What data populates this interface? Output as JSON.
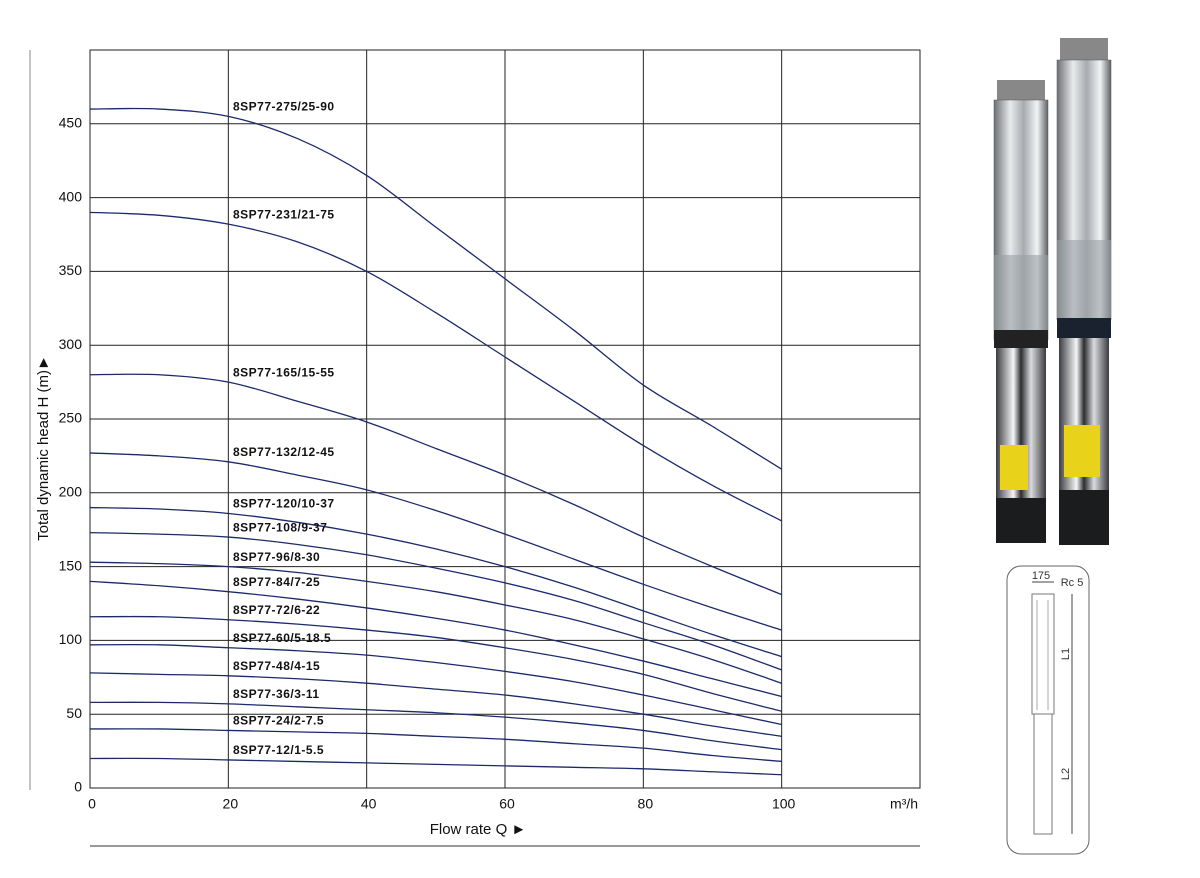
{
  "chart_data": {
    "type": "line",
    "x_label": "Flow rate Q  ►",
    "y_label": "Total dynamic head H (m)►",
    "x_unit": "m³/h",
    "x": [
      0,
      10,
      20,
      30,
      40,
      50,
      60,
      70,
      80,
      90,
      100
    ],
    "xlim": [
      0,
      120
    ],
    "xticks": [
      0,
      20,
      40,
      60,
      80,
      100
    ],
    "ylim": [
      0,
      500
    ],
    "yticks": [
      0,
      50,
      100,
      150,
      200,
      250,
      300,
      350,
      400,
      450
    ],
    "grid": true,
    "series": [
      {
        "name": "8SP77-275/25-90",
        "color": "#1b2a6b",
        "values": [
          460,
          460,
          455,
          440,
          415,
          380,
          345,
          310,
          273,
          245,
          216
        ]
      },
      {
        "name": "8SP77-231/21-75",
        "color": "#1b2a6b",
        "values": [
          390,
          388,
          382,
          370,
          350,
          322,
          292,
          262,
          232,
          205,
          181
        ]
      },
      {
        "name": "8SP77-165/15-55",
        "color": "#1b2a6b",
        "values": [
          280,
          280,
          275,
          262,
          248,
          230,
          212,
          192,
          170,
          150,
          131
        ]
      },
      {
        "name": "8SP77-132/12-45",
        "color": "#1b2a6b",
        "values": [
          227,
          225,
          221,
          212,
          202,
          188,
          172,
          155,
          138,
          122,
          107
        ]
      },
      {
        "name": "8SP77-120/10-37",
        "color": "#1b2a6b",
        "values": [
          190,
          189,
          186,
          180,
          172,
          162,
          150,
          136,
          120,
          104,
          89
        ]
      },
      {
        "name": "8SP77-108/9-37",
        "color": "#1b2a6b",
        "values": [
          173,
          172,
          170,
          165,
          158,
          149,
          139,
          127,
          112,
          97,
          80
        ]
      },
      {
        "name": "8SP77-96/8-30",
        "color": "#1b2a6b",
        "values": [
          153,
          152,
          150,
          146,
          140,
          133,
          124,
          114,
          101,
          87,
          71
        ]
      },
      {
        "name": "8SP77-84/7-25",
        "color": "#1b2a6b",
        "values": [
          140,
          137,
          133,
          128,
          122,
          115,
          107,
          97,
          86,
          74,
          62
        ]
      },
      {
        "name": "8SP77-72/6-22",
        "color": "#1b2a6b",
        "values": [
          116,
          116,
          114,
          111,
          107,
          102,
          95,
          87,
          77,
          64,
          52
        ]
      },
      {
        "name": "8SP77-60/5-18.5",
        "color": "#1b2a6b",
        "values": [
          97,
          97,
          95,
          93,
          90,
          85,
          79,
          72,
          63,
          53,
          43
        ]
      },
      {
        "name": "8SP77-48/4-15",
        "color": "#1b2a6b",
        "values": [
          78,
          77,
          76,
          74,
          71,
          67,
          63,
          57,
          50,
          42,
          35
        ]
      },
      {
        "name": "8SP77-36/3-11",
        "color": "#1b2a6b",
        "values": [
          58,
          58,
          57,
          55,
          53,
          51,
          48,
          44,
          39,
          32,
          26
        ]
      },
      {
        "name": "8SP77-24/2-7.5",
        "color": "#1b2a6b",
        "values": [
          40,
          40,
          39,
          38,
          37,
          35,
          33,
          30,
          27,
          22,
          18
        ]
      },
      {
        "name": "8SP77-12/1-5.5",
        "color": "#1b2a6b",
        "values": [
          20,
          20,
          19,
          18,
          17,
          16,
          15,
          14,
          13,
          11,
          9
        ]
      }
    ]
  },
  "product_drawing": {
    "width": "175",
    "thread": "Rc 5",
    "upper_length": "L1",
    "lower_length": "L2"
  }
}
